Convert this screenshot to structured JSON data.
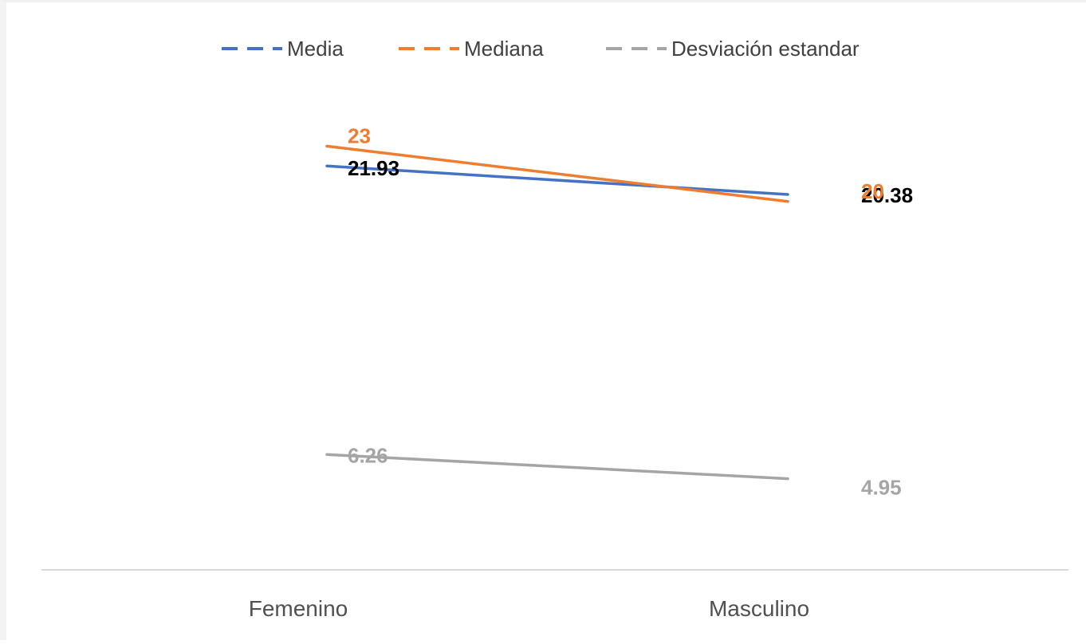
{
  "chart_data": {
    "type": "line",
    "categories": [
      "Femenino",
      "Masculino"
    ],
    "series": [
      {
        "name": "Media",
        "values": [
          21.93,
          20.38
        ],
        "data_labels": [
          "21.93",
          "20.38"
        ],
        "color": "#4472C4",
        "label_color": "#000000"
      },
      {
        "name": "Mediana",
        "values": [
          23,
          20
        ],
        "data_labels": [
          "23",
          "20"
        ],
        "color": "#ED7D31",
        "label_color": "#ED7D31"
      },
      {
        "name": "Desviación estandar",
        "values": [
          6.26,
          4.95
        ],
        "data_labels": [
          "6.26",
          "4.95"
        ],
        "color": "#A5A5A5",
        "label_color": "#A5A5A5"
      }
    ],
    "ylim": [
      0,
      27
    ],
    "grid": false,
    "legend": "top",
    "axis_color": "#D9D9D9"
  }
}
